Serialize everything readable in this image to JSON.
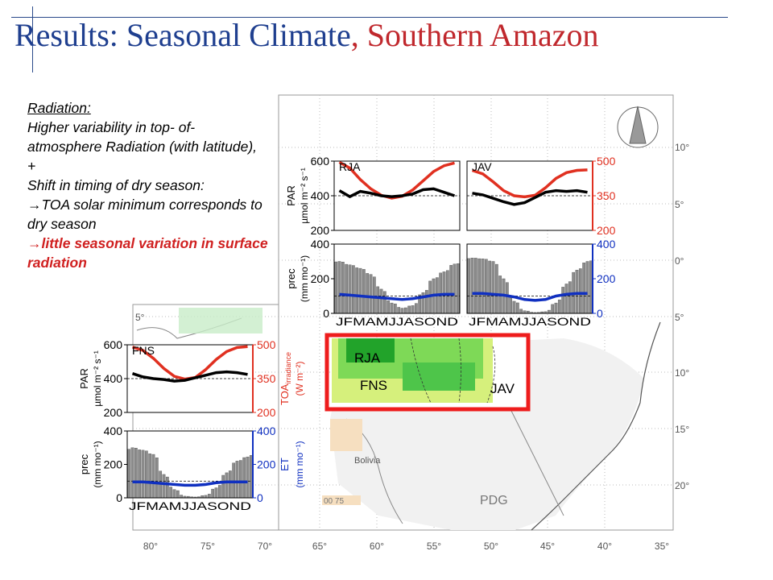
{
  "slide": {
    "title_part1": "Results: Seasonal Climate",
    "title_part2": ", Southern Amazon",
    "colors": {
      "title_blue": "#1f3f8f",
      "title_red": "#c0282d",
      "par": "#000000",
      "toa": "#e03020",
      "et": "#1030c0",
      "prec": "#8c8c8c",
      "frame": "#ee1c1c"
    }
  },
  "text": {
    "heading": "Radiation:",
    "line1": "Higher variability in top- of-atmosphere Radiation (with latitude), +",
    "line2": "Shift in timing of dry season:",
    "arrow1": "→TOA solar minimum corresponds to dry season",
    "arrow2": "→little seasonal variation in surface radiation"
  },
  "map": {
    "lon_labels": [
      "80°",
      "75°",
      "70°",
      "65°",
      "60°",
      "55°",
      "50°",
      "45°",
      "40°",
      "35°"
    ],
    "lat_labels": [
      "10°",
      "5°",
      "0°",
      "5°",
      "10°",
      "15°",
      "20°"
    ],
    "place_labels": {
      "rja": "RJA",
      "fns": "FNS",
      "jav": "JAV",
      "bolivia": "Bolivia",
      "pdg": "PDG",
      "scale": "00   75"
    }
  },
  "chart_data": [
    {
      "type": "line",
      "site": "RJA",
      "panel": "radiation",
      "x": [
        "J",
        "F",
        "M",
        "A",
        "M",
        "J",
        "J",
        "A",
        "S",
        "O",
        "N",
        "D"
      ],
      "series": [
        {
          "name": "PAR",
          "values": [
            430,
            395,
            425,
            415,
            400,
            395,
            400,
            410,
            435,
            440,
            420,
            400
          ],
          "axis": "left"
        },
        {
          "name": "TOA irradiance",
          "values": [
            495,
            470,
            420,
            380,
            352,
            340,
            348,
            375,
            415,
            455,
            480,
            492
          ],
          "axis": "right"
        }
      ],
      "left_axis": {
        "label_line1": "PAR",
        "label_line2": "µmol m⁻² s⁻¹",
        "ticks": [
          200,
          400,
          600
        ],
        "ylim": [
          200,
          600
        ]
      },
      "right_axis": {
        "label_line1": "TOA",
        "label_sub": "irradiance",
        "label_line2": "(W m⁻²)",
        "ticks": [
          200,
          350,
          500
        ],
        "ylim": [
          200,
          500
        ]
      },
      "reference_line": 400
    },
    {
      "type": "line",
      "site": "JAV",
      "panel": "radiation",
      "x": [
        "J",
        "F",
        "M",
        "A",
        "M",
        "J",
        "J",
        "A",
        "S",
        "O",
        "N",
        "D"
      ],
      "series": [
        {
          "name": "PAR",
          "values": [
            415,
            405,
            385,
            365,
            350,
            360,
            390,
            420,
            430,
            425,
            430,
            420
          ],
          "axis": "left"
        },
        {
          "name": "TOA irradiance",
          "values": [
            460,
            445,
            410,
            372,
            350,
            345,
            352,
            385,
            425,
            450,
            460,
            462
          ],
          "axis": "right"
        }
      ],
      "left_axis": {
        "ticks": [
          200,
          400,
          600
        ],
        "ylim": [
          200,
          600
        ]
      },
      "right_axis": {
        "ticks": [
          200,
          350,
          500
        ],
        "ylim": [
          200,
          500
        ]
      },
      "reference_line": 400
    },
    {
      "type": "bar",
      "site": "RJA",
      "panel": "precipitation",
      "categories": [
        "J",
        "F",
        "M",
        "A",
        "M",
        "J",
        "J",
        "A",
        "S",
        "O",
        "N",
        "D"
      ],
      "series": [
        {
          "name": "prec",
          "values": [
            300,
            280,
            260,
            225,
            140,
            60,
            30,
            45,
            120,
            200,
            240,
            285
          ],
          "axis": "left"
        },
        {
          "name": "ET",
          "values": [
            110,
            105,
            100,
            95,
            90,
            85,
            80,
            85,
            95,
            105,
            110,
            110
          ],
          "axis": "right"
        }
      ],
      "left_axis": {
        "label_line1": "prec",
        "label_line2": "(mm mo⁻¹)",
        "ticks": [
          0,
          200,
          400
        ],
        "ylim": [
          0,
          400
        ]
      },
      "right_axis": {
        "label_line1": "ET",
        "label_line2": "(mm mo⁻¹)",
        "ticks": [
          0,
          200,
          400
        ],
        "ylim": [
          0,
          400
        ]
      },
      "reference_line": 100
    },
    {
      "type": "bar",
      "site": "JAV",
      "panel": "precipitation",
      "categories": [
        "J",
        "F",
        "M",
        "A",
        "M",
        "J",
        "J",
        "A",
        "S",
        "O",
        "N",
        "D"
      ],
      "series": [
        {
          "name": "prec",
          "values": [
            320,
            315,
            300,
            200,
            70,
            15,
            5,
            10,
            60,
            170,
            250,
            300
          ],
          "axis": "left"
        },
        {
          "name": "ET",
          "values": [
            115,
            115,
            110,
            105,
            95,
            80,
            75,
            80,
            100,
            110,
            115,
            115
          ],
          "axis": "right"
        }
      ],
      "left_axis": {
        "ticks": [
          0,
          200,
          400
        ],
        "ylim": [
          0,
          400
        ]
      },
      "right_axis": {
        "ticks": [
          0,
          200,
          400
        ],
        "ylim": [
          0,
          400
        ]
      },
      "reference_line": 100
    },
    {
      "type": "line",
      "site": "FNS",
      "panel": "radiation",
      "x": [
        "J",
        "F",
        "M",
        "A",
        "M",
        "J",
        "J",
        "A",
        "S",
        "O",
        "N",
        "D"
      ],
      "series": [
        {
          "name": "PAR",
          "values": [
            430,
            410,
            400,
            395,
            385,
            390,
            405,
            420,
            435,
            440,
            435,
            425
          ],
          "axis": "left"
        },
        {
          "name": "TOA irradiance",
          "values": [
            490,
            475,
            440,
            395,
            360,
            348,
            355,
            390,
            435,
            470,
            488,
            492
          ],
          "axis": "right"
        }
      ],
      "left_axis": {
        "label_line1": "PAR",
        "label_line2": "µmol m⁻² s⁻¹",
        "ticks": [
          200,
          400,
          600
        ],
        "ylim": [
          200,
          600
        ]
      },
      "right_axis": {
        "label_line1": "TOA",
        "label_sub": "irradiance",
        "label_line2": "(W m⁻²)",
        "ticks": [
          200,
          350,
          500
        ],
        "ylim": [
          200,
          500
        ]
      },
      "reference_line": 400
    },
    {
      "type": "bar",
      "site": "FNS",
      "panel": "precipitation",
      "categories": [
        "J",
        "F",
        "M",
        "A",
        "M",
        "J",
        "J",
        "A",
        "S",
        "O",
        "N",
        "D"
      ],
      "series": [
        {
          "name": "prec",
          "values": [
            300,
            285,
            260,
            140,
            50,
            10,
            5,
            15,
            60,
            150,
            220,
            245
          ],
          "axis": "left"
        },
        {
          "name": "ET",
          "values": [
            95,
            95,
            90,
            85,
            80,
            75,
            75,
            80,
            90,
            95,
            95,
            95
          ],
          "axis": "right"
        }
      ],
      "left_axis": {
        "label_line1": "prec",
        "label_line2": "(mm mo⁻¹)",
        "ticks": [
          0,
          200,
          400
        ],
        "ylim": [
          0,
          400
        ]
      },
      "right_axis": {
        "label_line1": "ET",
        "label_line2": "(mm mo⁻¹)",
        "ticks": [
          0,
          200,
          400
        ],
        "ylim": [
          0,
          400
        ]
      },
      "reference_line": 100
    }
  ]
}
